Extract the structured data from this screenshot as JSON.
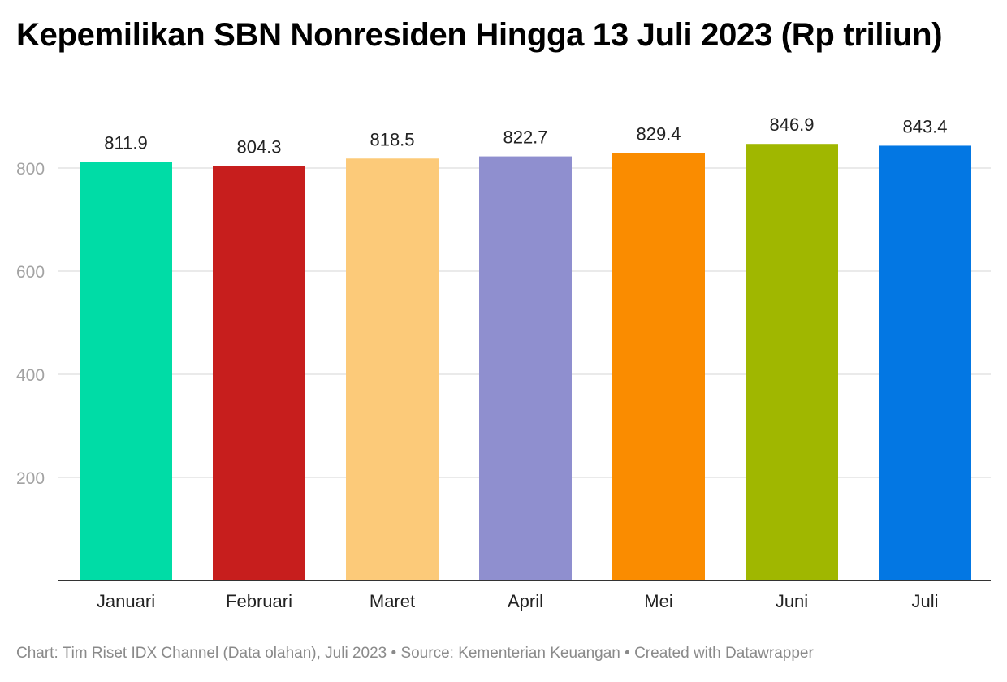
{
  "chart_data": {
    "type": "bar",
    "title": "Kepemilikan SBN Nonresiden Hingga 13 Juli 2023 (Rp triliun)",
    "categories": [
      "Januari",
      "Februari",
      "Maret",
      "April",
      "Mei",
      "Juni",
      "Juli"
    ],
    "values": [
      811.9,
      804.3,
      818.5,
      822.7,
      829.4,
      846.9,
      843.4
    ],
    "value_labels": [
      "811.9",
      "804.3",
      "818.5",
      "822.7",
      "829.4",
      "846.9",
      "843.4"
    ],
    "colors": [
      "#00dca6",
      "#c71e1d",
      "#fcca79",
      "#8f8fcf",
      "#fa8c00",
      "#a0b700",
      "#0377e3"
    ],
    "yticks": [
      200,
      400,
      600,
      800
    ],
    "ylim": [
      0,
      870
    ],
    "xlabel": "",
    "ylabel": "",
    "grid": true
  },
  "footer": {
    "chart_credit": "Chart: Tim Riset IDX Channel (Data olahan), Juli 2023",
    "source": "Source: Kementerian Keuangan",
    "created": "Created with Datawrapper",
    "separator": " • "
  }
}
